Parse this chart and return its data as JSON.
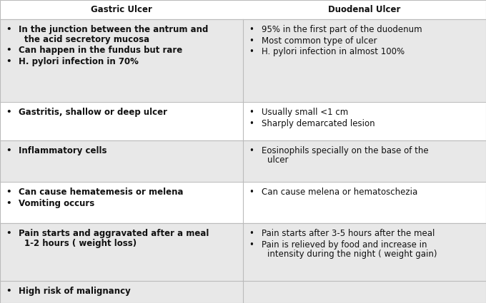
{
  "title_left": "Gastric Ulcer",
  "title_right": "Duodenal Ulcer",
  "background_color": "#ffffff",
  "row_colors": [
    "#e8e8e8",
    "#ffffff",
    "#e8e8e8",
    "#ffffff",
    "#e8e8e8",
    "#e8e8e8"
  ],
  "divider_color": "#bbbbbb",
  "text_color": "#111111",
  "rows": [
    {
      "left": [
        [
          "In the junction between the antrum and",
          "the acid secretory mucosa"
        ],
        [
          "Can happen in the fundus but rare"
        ],
        [
          "H. pylori infection in 70%"
        ]
      ],
      "right": [
        [
          "95% in the first part of the duodenum"
        ],
        [
          "Most common type of ulcer"
        ],
        [
          "H. pylori infection in almost 100%"
        ]
      ]
    },
    {
      "left": [
        [
          "Gastritis, shallow or deep ulcer"
        ]
      ],
      "right": [
        [
          "Usually small <1 cm"
        ],
        [
          "Sharply demarcated lesion"
        ]
      ]
    },
    {
      "left": [
        [
          "Inflammatory cells"
        ]
      ],
      "right": [
        [
          "Eosinophils specially on the base of the",
          "ulcer"
        ]
      ]
    },
    {
      "left": [
        [
          "Can cause hematemesis or melena"
        ],
        [
          "Vomiting occurs"
        ]
      ],
      "right": [
        [
          "Can cause melena or hematoschezia"
        ]
      ]
    },
    {
      "left": [
        [
          "Pain starts and aggravated after a meal",
          "1-2 hours ( weight loss)"
        ]
      ],
      "right": [
        [
          "Pain starts after 3-5 hours after the meal"
        ],
        [
          "Pain is relieved by food and increase in",
          "intensity during the night ( weight gain)"
        ]
      ]
    },
    {
      "left": [
        [
          "High risk of malignancy"
        ]
      ],
      "right": []
    }
  ],
  "figsize": [
    6.8,
    4.25
  ],
  "dpi": 100
}
